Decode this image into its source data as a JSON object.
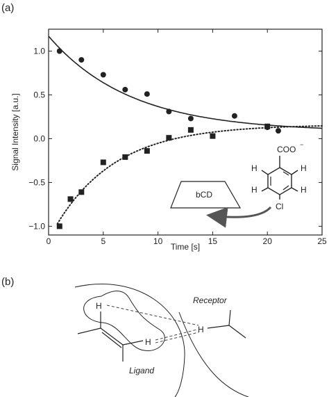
{
  "panel_labels": {
    "a": "(a)",
    "b": "(b)"
  },
  "chart_data": {
    "type": "scatter",
    "title": "",
    "xlabel": "Time [s]",
    "ylabel": "Signal Intensity [a.u.]",
    "xlim": [
      0,
      25
    ],
    "ylim": [
      -1.1,
      1.25
    ],
    "x_ticks": [
      0,
      5,
      10,
      15,
      20,
      25
    ],
    "x_tick_labels": [
      "0",
      "5",
      "10",
      "15",
      "20",
      "25"
    ],
    "y_ticks": [
      -1.0,
      -0.5,
      0.0,
      0.5,
      1.0
    ],
    "y_tick_labels": [
      "−1.0",
      "−0.5",
      "0.0",
      "0.5",
      "1.0"
    ],
    "grid": false,
    "series": [
      {
        "marker": "circle",
        "color": "#222222",
        "x": [
          1,
          3,
          5,
          7,
          9,
          11,
          13,
          17,
          20,
          21
        ],
        "y": [
          1.0,
          0.9,
          0.73,
          0.56,
          0.51,
          0.31,
          0.23,
          0.26,
          0.13,
          0.09
        ]
      },
      {
        "marker": "square",
        "color": "#222222",
        "x": [
          1,
          2,
          3,
          5,
          7,
          9,
          11,
          13,
          15,
          20
        ],
        "y": [
          -1.0,
          -0.69,
          -0.61,
          -0.27,
          -0.21,
          -0.14,
          0.01,
          0.1,
          0.03,
          0.14
        ]
      }
    ],
    "fits": [
      {
        "style": "solid",
        "color": "#222222",
        "equation": "y = 0.08 + 1.09*exp(-x/7.5)"
      },
      {
        "style": "dotted",
        "color": "#222222",
        "equation": "y = 0.16 - 1.31*exp(-x/5.5)"
      }
    ],
    "inset": {
      "host_label": "bCD",
      "molecule": {
        "top_group": "COO",
        "top_charge": "−",
        "hydrogens": [
          "H",
          "H",
          "H",
          "H"
        ],
        "bottom_group": "Cl"
      }
    }
  },
  "panel_b": {
    "receptor_label": "Receptor",
    "ligand_label": "Ligand",
    "h_labels": [
      "H",
      "H",
      "H"
    ]
  }
}
